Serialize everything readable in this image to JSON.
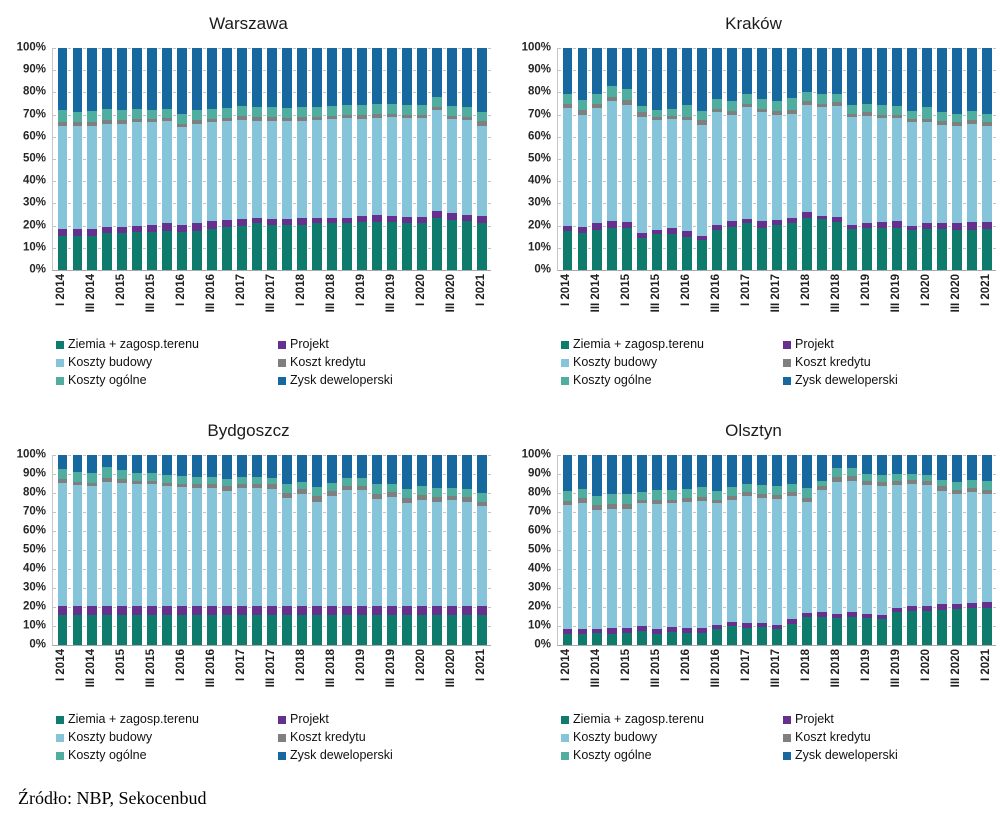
{
  "source_note": "Źródło: NBP, Sekocenbud",
  "colors": {
    "ziemia": "#0f7b6c",
    "projekt": "#66318e",
    "budowy": "#85c4d9",
    "kredyt": "#7f7f7f",
    "ogolne": "#4fae9f",
    "zysk": "#17689e",
    "gridline": "#c3c3c3",
    "axis_line": "#a8a8a8"
  },
  "legend_items": [
    {
      "key": "ziemia",
      "label": "Ziemia + zagosp.terenu"
    },
    {
      "key": "projekt",
      "label": "Projekt"
    },
    {
      "key": "budowy",
      "label": "Koszty budowy"
    },
    {
      "key": "kredyt",
      "label": "Koszt kredytu"
    },
    {
      "key": "ogolne",
      "label": "Koszty ogólne"
    },
    {
      "key": "zysk",
      "label": "Zysk deweloperski"
    }
  ],
  "y_axis": {
    "min": 0,
    "max": 100,
    "step": 10,
    "ticks": [
      "0%",
      "10%",
      "20%",
      "30%",
      "40%",
      "50%",
      "60%",
      "70%",
      "80%",
      "90%",
      "100%"
    ]
  },
  "chart_data": {
    "type": "bar",
    "stacked": true,
    "percent": true,
    "grid": "dashed-horizontal",
    "legend_position": "bottom",
    "stack_order": [
      "ziemia",
      "projekt",
      "budowy",
      "kredyt",
      "ogolne",
      "zysk"
    ],
    "categories": [
      "I 2014",
      "II 2014",
      "III 2014",
      "IV 2014",
      "I 2015",
      "II 2015",
      "III 2015",
      "IV 2015",
      "I 2016",
      "II 2016",
      "III 2016",
      "IV 2016",
      "I 2017",
      "II 2017",
      "III 2017",
      "IV 2017",
      "I 2018",
      "II 2018",
      "III 2018",
      "IV 2018",
      "I 2019",
      "II 2019",
      "III 2019",
      "IV 2019",
      "I 2020",
      "II 2020",
      "III 2020",
      "IV 2020",
      "I 2021"
    ],
    "x_tick_labels_visible": [
      "I 2014",
      "III 2014",
      "I 2015",
      "III 2015",
      "I 2016",
      "III 2016",
      "I 2017",
      "III 2017",
      "I 2018",
      "III 2018",
      "I 2019",
      "III 2019",
      "I 2020",
      "III 2020",
      "I 2021"
    ],
    "charts": [
      {
        "title": "Warszawa",
        "series": {
          "ziemia": [
            15.5,
            15.5,
            15.5,
            16.5,
            16.5,
            17,
            17,
            17.5,
            17,
            17.5,
            18.5,
            19.5,
            20,
            21,
            20.5,
            20.5,
            20.5,
            21,
            21,
            21,
            21.5,
            21.5,
            21.5,
            21,
            21,
            23.5,
            22.5,
            22,
            21
          ],
          "projekt": [
            3,
            3,
            3,
            3,
            3,
            3,
            3.5,
            3.5,
            3.5,
            3.5,
            3.5,
            3,
            3,
            2.5,
            2.5,
            2.5,
            3,
            2.5,
            2.5,
            2.5,
            3,
            3.5,
            3,
            3,
            3,
            3,
            3,
            3,
            3.5
          ],
          "budowy": [
            46.5,
            46.5,
            46.5,
            46.5,
            46.5,
            46.5,
            46,
            46,
            44,
            45,
            44.5,
            44.5,
            44.5,
            43.5,
            44,
            44,
            43.5,
            44,
            44.5,
            45,
            43.5,
            43.5,
            44.5,
            44.5,
            44.5,
            45.5,
            42.5,
            42.5,
            40.5
          ],
          "kredyt": [
            1.5,
            1.5,
            1.5,
            1.5,
            1.5,
            1.5,
            1.5,
            1.5,
            1.5,
            1.5,
            1.5,
            1.5,
            2,
            2,
            2,
            1.5,
            2,
            1.5,
            1.5,
            1.5,
            2,
            2,
            1.5,
            1.5,
            1.5,
            1.5,
            1.5,
            1.5,
            2
          ],
          "ogolne": [
            5.5,
            4.5,
            5,
            5,
            4.5,
            4.5,
            4,
            4,
            4.5,
            4.5,
            4.5,
            4.5,
            4.5,
            4.5,
            4.5,
            4.5,
            4.5,
            4.5,
            4.5,
            4.5,
            4.5,
            4.5,
            4.5,
            4.5,
            4.5,
            4.5,
            4.5,
            4.5,
            4
          ],
          "zysk": [
            28,
            29,
            28.5,
            27.5,
            28,
            27.5,
            28,
            27.5,
            29.5,
            28,
            27.5,
            27,
            26,
            26.5,
            26.5,
            27,
            26.5,
            26.5,
            26,
            25.5,
            25.5,
            25,
            25,
            25.5,
            25.5,
            22,
            26,
            26.5,
            29
          ]
        }
      },
      {
        "title": "Kraków",
        "series": {
          "ziemia": [
            17.5,
            16.5,
            18,
            19,
            19,
            14.5,
            16,
            16,
            15,
            13.5,
            18,
            19.5,
            21,
            19,
            20.5,
            21,
            23.5,
            23,
            21.5,
            18.5,
            19,
            19,
            19,
            18,
            18.5,
            18.5,
            18,
            18,
            18.5
          ],
          "projekt": [
            2.5,
            3,
            3,
            3,
            2.5,
            2,
            2,
            3,
            2.5,
            2,
            2.5,
            2.5,
            2,
            3,
            2,
            2.5,
            2.5,
            1.5,
            2.5,
            2,
            2,
            2.5,
            3,
            2,
            2.5,
            2.5,
            3,
            3.5,
            3
          ],
          "budowy": [
            53,
            50.5,
            52,
            54,
            53,
            52.5,
            49.5,
            49,
            50,
            50,
            50.5,
            48,
            50.5,
            49,
            47.5,
            47,
            48.5,
            49,
            50,
            48.5,
            48.5,
            47,
            46.5,
            46.5,
            45.5,
            44.5,
            44,
            44.5,
            43.5
          ],
          "kredyt": [
            2,
            2,
            2,
            2,
            2,
            2,
            1.5,
            1.5,
            1.5,
            2,
            1.5,
            1.5,
            1.5,
            1.5,
            1.5,
            1.5,
            1.5,
            1.5,
            1.5,
            1.5,
            1.5,
            1.5,
            1.5,
            1.5,
            1.5,
            1.5,
            1.5,
            1.5,
            1.5
          ],
          "ogolne": [
            4.5,
            4.5,
            4.5,
            5,
            5,
            3,
            3,
            3,
            5.5,
            4,
            4.5,
            4.5,
            4.5,
            4.5,
            4.5,
            5.5,
            4,
            4.5,
            4,
            4,
            4,
            4.5,
            4,
            3.5,
            5.5,
            4,
            4,
            4,
            4
          ],
          "zysk": [
            20.5,
            23.5,
            20.5,
            17,
            18.5,
            26,
            28,
            27.5,
            25.5,
            28.5,
            23,
            24,
            20.5,
            23,
            24,
            22.5,
            20,
            20.5,
            20.5,
            25.5,
            25,
            25.5,
            26,
            28.5,
            26.5,
            29,
            29.5,
            28.5,
            29.5
          ]
        }
      },
      {
        "title": "Bydgoszcz",
        "series": {
          "ziemia": [
            16,
            16,
            16,
            16,
            16,
            16,
            16,
            16,
            16,
            16,
            16,
            16,
            16,
            16,
            16,
            16,
            16,
            16,
            16,
            16,
            16,
            16,
            16,
            16,
            16,
            16,
            16,
            16,
            16
          ],
          "projekt": [
            4.5,
            4.5,
            4.5,
            4.5,
            4.5,
            4.5,
            4.5,
            4.5,
            4.5,
            4.5,
            4.5,
            4.5,
            4.5,
            4.5,
            4.5,
            4.5,
            4.5,
            4.5,
            4.5,
            4.5,
            4.5,
            4.5,
            4.5,
            4.5,
            4.5,
            4.5,
            4.5,
            4.5,
            4.5
          ],
          "budowy": [
            65,
            63.5,
            63,
            65.5,
            65,
            64,
            64,
            63,
            62.5,
            62,
            62,
            60.5,
            62,
            62,
            61.5,
            57,
            59,
            55,
            58,
            61,
            61,
            56.5,
            57.5,
            54.5,
            56,
            55,
            56,
            55,
            52.5
          ],
          "kredyt": [
            2,
            2,
            2,
            2,
            2,
            2,
            2,
            2,
            2,
            2,
            2,
            2.5,
            2.5,
            2.5,
            2.5,
            2.5,
            2.5,
            3,
            2.5,
            2,
            2,
            2.5,
            2.5,
            2.5,
            2.5,
            2.5,
            2,
            2.5,
            2.5
          ],
          "ogolne": [
            5,
            5,
            5,
            5.5,
            4.5,
            4,
            4,
            4,
            4,
            4,
            4,
            4,
            3.5,
            3.5,
            3.5,
            4.5,
            4,
            4.5,
            4.5,
            4.5,
            4.5,
            5,
            4.5,
            4.5,
            4.5,
            4.5,
            4,
            4,
            4.5
          ],
          "zysk": [
            7.5,
            9,
            9.5,
            6.5,
            8,
            9.5,
            9.5,
            10.5,
            11,
            11.5,
            11.5,
            12.5,
            11.5,
            11.5,
            12,
            15.5,
            14,
            17,
            14.5,
            12,
            12,
            15.5,
            15,
            18,
            16.5,
            17.5,
            17.5,
            18,
            20
          ]
        }
      },
      {
        "title": "Olsztyn",
        "series": {
          "ziemia": [
            6,
            6,
            6.5,
            6,
            6.5,
            7.5,
            6,
            7,
            6.5,
            6.5,
            8.5,
            10,
            9,
            9.5,
            8.5,
            11,
            14.5,
            15,
            14,
            15,
            14,
            13.5,
            17.5,
            18,
            18,
            18.5,
            19,
            19.5,
            19.5
          ],
          "projekt": [
            2.5,
            2.5,
            2,
            3,
            2.5,
            2.5,
            2.5,
            2.5,
            2.5,
            2.5,
            2,
            2,
            2.5,
            2,
            2,
            2.5,
            2.5,
            2.5,
            2.5,
            2.5,
            2.5,
            2.5,
            2,
            2.5,
            2.5,
            3,
            2.5,
            2.5,
            3
          ],
          "budowy": [
            65,
            66.5,
            62.5,
            62.5,
            62.5,
            64.5,
            65.5,
            65,
            66.5,
            67,
            64,
            64.5,
            67,
            66,
            66.5,
            65,
            58.5,
            64,
            69.5,
            69,
            67.5,
            67.5,
            64.5,
            64,
            63.5,
            59.5,
            58,
            58.5,
            57
          ],
          "kredyt": [
            2.5,
            2.5,
            2.5,
            2.5,
            2.5,
            2,
            2.5,
            2,
            2,
            2,
            2,
            2,
            2,
            2,
            2,
            2,
            2,
            2,
            2.5,
            2.5,
            2.5,
            2.5,
            2.5,
            2.5,
            2.5,
            2.5,
            2,
            2,
            2
          ],
          "ogolne": [
            5,
            4.5,
            5,
            5.5,
            5.5,
            4,
            5,
            5,
            4.5,
            5,
            4.5,
            4.5,
            4.5,
            4.5,
            4.5,
            4.5,
            5,
            3,
            4.5,
            4,
            3.5,
            3.5,
            3.5,
            3,
            3,
            3.5,
            4.5,
            4.5,
            5
          ],
          "zysk": [
            19,
            18,
            21.5,
            20.5,
            20.5,
            19.5,
            18.5,
            18.5,
            18,
            17,
            19,
            17,
            15,
            16,
            16.5,
            15,
            17.5,
            13.5,
            7,
            7,
            10,
            10.5,
            10,
            10,
            10.5,
            13,
            14,
            13,
            13.5
          ]
        }
      }
    ]
  }
}
